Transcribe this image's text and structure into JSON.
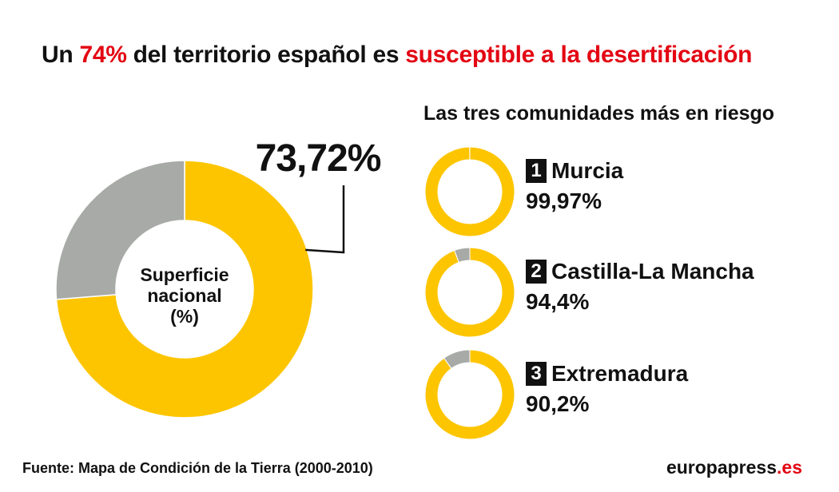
{
  "title": {
    "part1": "Un ",
    "highlight1": "74%",
    "part2": " del territorio español es ",
    "highlight2": "susceptible a la desertificación"
  },
  "colors": {
    "susceptible": "#fdc500",
    "rest": "#a7aaa6",
    "highlight_text": "#e30613",
    "badge": "#111111"
  },
  "chart_data": [
    {
      "type": "pie",
      "variant": "donut",
      "center_label": [
        "Superficie",
        "nacional",
        "(%)"
      ],
      "value_label": "73,72%",
      "slices": [
        {
          "name": "susceptible",
          "value": 73.72,
          "color": "#fdc500"
        },
        {
          "name": "rest",
          "value": 26.28,
          "color": "#a7aaa6"
        }
      ]
    },
    {
      "type": "pie",
      "variant": "donut",
      "rank": "1",
      "label": "Murcia",
      "value_label": "99,97%",
      "slices": [
        {
          "name": "susceptible",
          "value": 99.97,
          "color": "#fdc500"
        },
        {
          "name": "rest",
          "value": 0.03,
          "color": "#a7aaa6"
        }
      ]
    },
    {
      "type": "pie",
      "variant": "donut",
      "rank": "2",
      "label": "Castilla-La Mancha",
      "value_label": "94,4%",
      "slices": [
        {
          "name": "susceptible",
          "value": 94.4,
          "color": "#fdc500"
        },
        {
          "name": "rest",
          "value": 5.6,
          "color": "#a7aaa6"
        }
      ]
    },
    {
      "type": "pie",
      "variant": "donut",
      "rank": "3",
      "label": "Extremadura",
      "value_label": "90,2%",
      "slices": [
        {
          "name": "susceptible",
          "value": 90.2,
          "color": "#fdc500"
        },
        {
          "name": "rest",
          "value": 9.8,
          "color": "#a7aaa6"
        }
      ]
    }
  ],
  "subtitle": "Las tres comunidades más en riesgo",
  "footer": {
    "source": "Fuente: Mapa de Condición de la Tierra (2000-2010)",
    "brand_main": "europapress",
    "brand_suffix": ".es"
  }
}
